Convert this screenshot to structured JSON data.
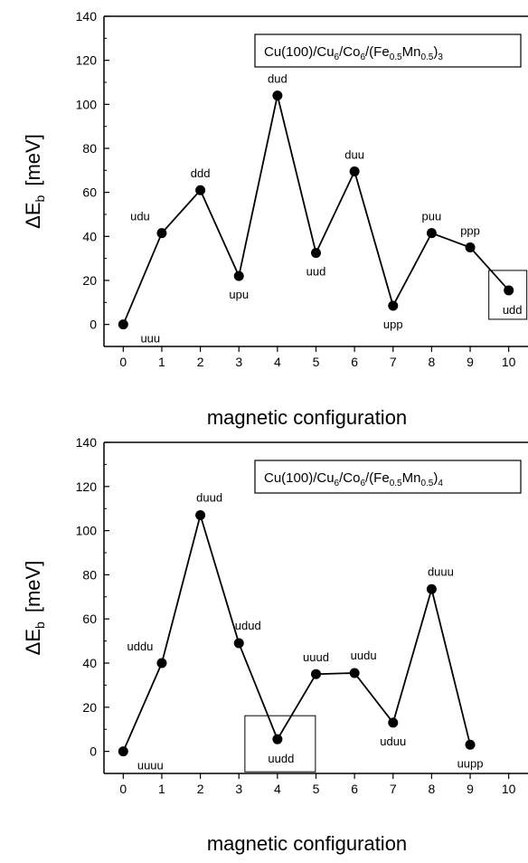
{
  "chart_data": [
    {
      "type": "line",
      "legend": {
        "parts": [
          {
            "t": "Cu(100)/Cu",
            "sub": false
          },
          {
            "t": "6",
            "sub": true
          },
          {
            "t": "/Co",
            "sub": false
          },
          {
            "t": "6",
            "sub": true
          },
          {
            "t": "/(Fe",
            "sub": false
          },
          {
            "t": "0.5",
            "sub": true
          },
          {
            "t": "Mn",
            "sub": false
          },
          {
            "t": "0.5",
            "sub": true
          },
          {
            "t": ")",
            "sub": false
          },
          {
            "t": "3",
            "sub": true
          }
        ],
        "position": "top-right"
      },
      "xlabel": "magnetic configuration",
      "ylabel": {
        "main": "ΔE",
        "sub": "b",
        "unit": "[meV]"
      },
      "xlim": [
        -0.5,
        10.5
      ],
      "ylim": [
        -10,
        140
      ],
      "xticks": [
        "0",
        "1",
        "2",
        "3",
        "4",
        "5",
        "6",
        "7",
        "8",
        "9",
        "10"
      ],
      "yticks": [
        "0",
        "20",
        "40",
        "60",
        "80",
        "100",
        "120",
        "140"
      ],
      "grid": false,
      "color": "#000000",
      "points": [
        {
          "x": 0,
          "y": 0,
          "label": "uuu",
          "pos": "below-right"
        },
        {
          "x": 1,
          "y": 41.5,
          "label": "udu",
          "pos": "above-left"
        },
        {
          "x": 2,
          "y": 61,
          "label": "ddd",
          "pos": "above"
        },
        {
          "x": 3,
          "y": 22,
          "label": "upu",
          "pos": "below"
        },
        {
          "x": 4,
          "y": 104,
          "label": "dud",
          "pos": "above"
        },
        {
          "x": 5,
          "y": 32.5,
          "label": "uud",
          "pos": "below"
        },
        {
          "x": 6,
          "y": 69.5,
          "label": "duu",
          "pos": "above"
        },
        {
          "x": 7,
          "y": 8.5,
          "label": "upp",
          "pos": "below"
        },
        {
          "x": 8,
          "y": 41.5,
          "label": "puu",
          "pos": "above"
        },
        {
          "x": 9,
          "y": 35,
          "label": "ppp",
          "pos": "above"
        },
        {
          "x": 10,
          "y": 15.5,
          "label": "udd",
          "pos": "below-boxed"
        }
      ]
    },
    {
      "type": "line",
      "legend": {
        "parts": [
          {
            "t": "Cu(100)/Cu",
            "sub": false
          },
          {
            "t": "6",
            "sub": true
          },
          {
            "t": "/Co",
            "sub": false
          },
          {
            "t": "6",
            "sub": true
          },
          {
            "t": "/(Fe",
            "sub": false
          },
          {
            "t": "0.5",
            "sub": true
          },
          {
            "t": "Mn",
            "sub": false
          },
          {
            "t": "0.5",
            "sub": true
          },
          {
            "t": ")",
            "sub": false
          },
          {
            "t": "4",
            "sub": true
          }
        ],
        "position": "top-right"
      },
      "xlabel": "magnetic configuration",
      "ylabel": {
        "main": "ΔE",
        "sub": "b",
        "unit": "[meV]"
      },
      "xlim": [
        -0.5,
        10.5
      ],
      "ylim": [
        -10,
        140
      ],
      "xticks": [
        "0",
        "1",
        "2",
        "3",
        "4",
        "5",
        "6",
        "7",
        "8",
        "9",
        "10"
      ],
      "yticks": [
        "0",
        "20",
        "40",
        "60",
        "80",
        "100",
        "120",
        "140"
      ],
      "grid": false,
      "color": "#000000",
      "points": [
        {
          "x": 0,
          "y": 0,
          "label": "uuuu",
          "pos": "below-right"
        },
        {
          "x": 1,
          "y": 40,
          "label": "uddu",
          "pos": "above-left"
        },
        {
          "x": 2,
          "y": 107,
          "label": "duud",
          "pos": "above-right"
        },
        {
          "x": 3,
          "y": 49,
          "label": "udud",
          "pos": "above-right"
        },
        {
          "x": 4,
          "y": 5.5,
          "label": "uudd",
          "pos": "below-boxed"
        },
        {
          "x": 5,
          "y": 35,
          "label": "uuud",
          "pos": "above"
        },
        {
          "x": 6,
          "y": 35.5,
          "label": "uudu",
          "pos": "above-right"
        },
        {
          "x": 7,
          "y": 13,
          "label": "uduu",
          "pos": "below"
        },
        {
          "x": 8,
          "y": 73.5,
          "label": "duuu",
          "pos": "above-right"
        },
        {
          "x": 9,
          "y": 3,
          "label": "uupp",
          "pos": "below"
        }
      ]
    }
  ]
}
